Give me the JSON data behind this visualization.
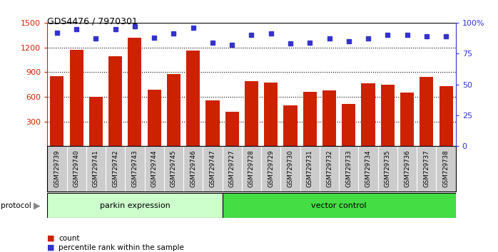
{
  "title": "GDS4476 / 7970301",
  "samples": [
    "GSM729739",
    "GSM729740",
    "GSM729741",
    "GSM729742",
    "GSM729743",
    "GSM729744",
    "GSM729745",
    "GSM729746",
    "GSM729747",
    "GSM729727",
    "GSM729728",
    "GSM729729",
    "GSM729730",
    "GSM729731",
    "GSM729732",
    "GSM729733",
    "GSM729734",
    "GSM729735",
    "GSM729736",
    "GSM729737",
    "GSM729738"
  ],
  "count_values": [
    850,
    1170,
    600,
    1090,
    1320,
    690,
    880,
    1160,
    560,
    420,
    790,
    770,
    500,
    660,
    680,
    510,
    760,
    750,
    650,
    840,
    730
  ],
  "percentile_values": [
    92,
    95,
    87,
    95,
    97,
    88,
    91,
    96,
    84,
    82,
    90,
    91,
    83,
    84,
    87,
    85,
    87,
    90,
    90,
    89,
    89
  ],
  "parkin_count": 9,
  "vector_count": 12,
  "parkin_label": "parkin expression",
  "vector_label": "vector control",
  "protocol_label": "protocol",
  "legend_count": "count",
  "legend_pct": "percentile rank within the sample",
  "ylim_left": [
    0,
    1500
  ],
  "ylim_right": [
    0,
    100
  ],
  "yticks_left": [
    300,
    600,
    900,
    1200,
    1500
  ],
  "yticks_right": [
    0,
    25,
    50,
    75,
    100
  ],
  "bar_color": "#CC2200",
  "dot_color": "#3333CC",
  "parkin_bg": "#CCFFCC",
  "vector_bg": "#44DD44",
  "tick_area_bg": "#CCCCCC",
  "grid_color": "#000000",
  "plot_bg": "#FFFFFF"
}
